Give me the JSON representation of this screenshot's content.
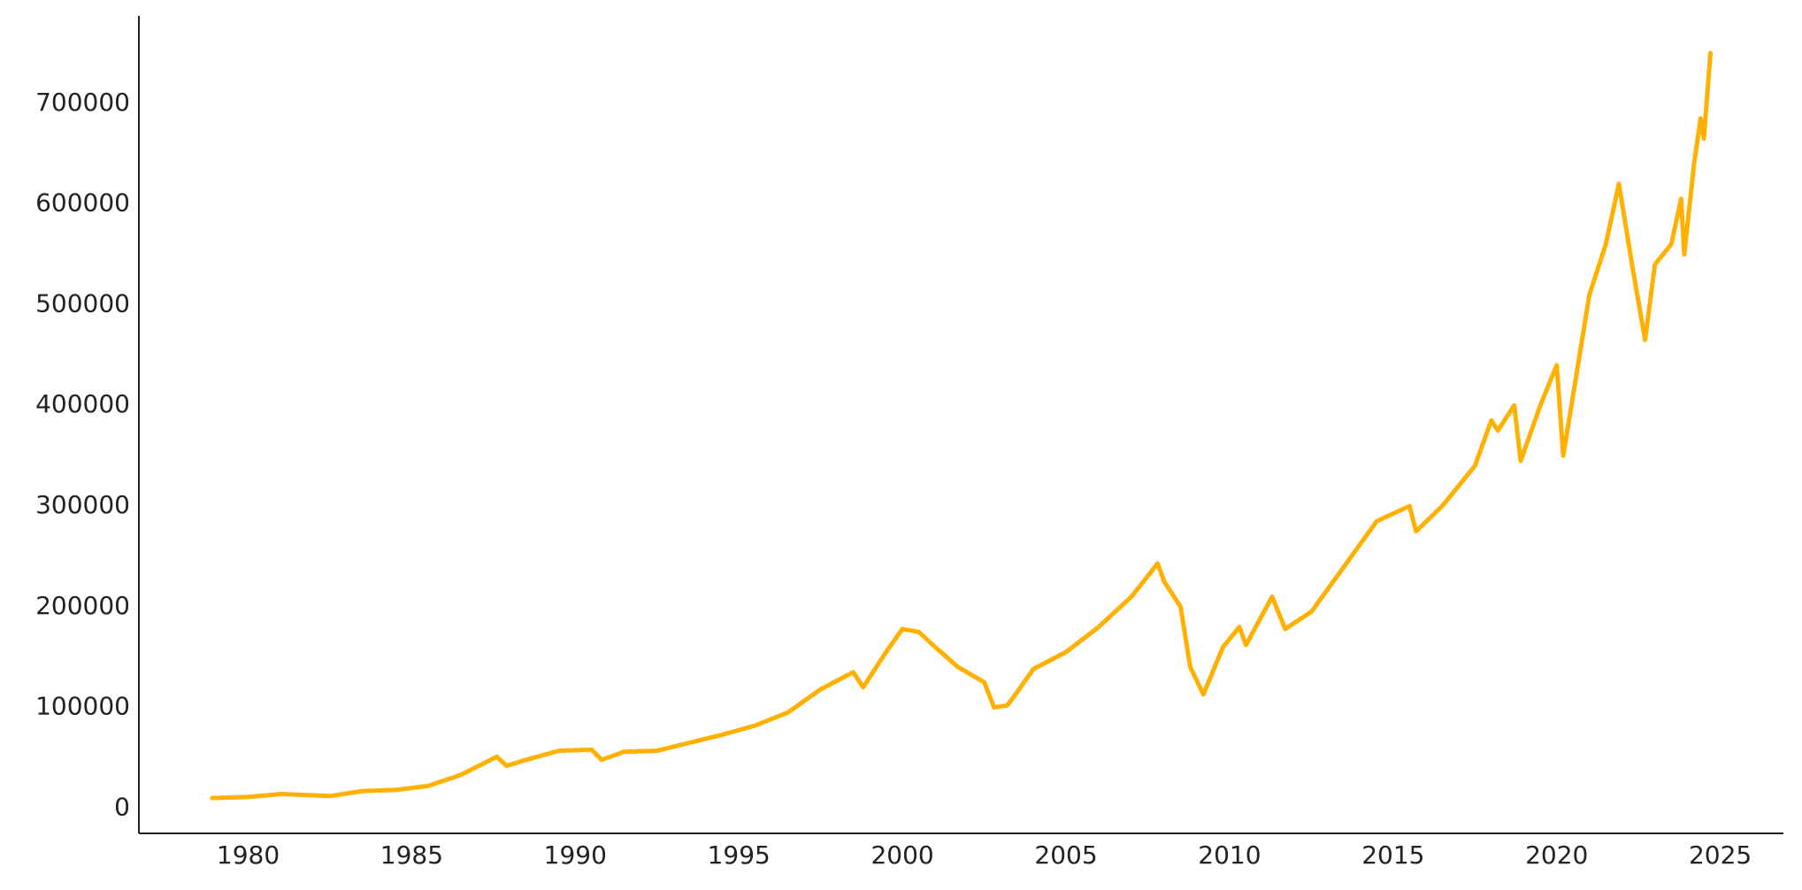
{
  "chart_data": {
    "type": "line",
    "color": "#ffb000",
    "grid": false,
    "x": [
      1978.9,
      1980.0,
      1981.0,
      1982.5,
      1983.5,
      1984.5,
      1985.5,
      1986.5,
      1987.6,
      1987.9,
      1988.5,
      1989.5,
      1990.5,
      1990.8,
      1991.5,
      1992.5,
      1993.5,
      1994.5,
      1995.5,
      1996.5,
      1997.5,
      1998.5,
      1998.8,
      1999.5,
      2000.0,
      2000.5,
      2001.0,
      2001.7,
      2002.5,
      2002.8,
      2003.2,
      2003.5,
      2004.0,
      2005.0,
      2006.0,
      2007.0,
      2007.8,
      2008.0,
      2008.5,
      2008.8,
      2009.2,
      2009.8,
      2010.3,
      2010.5,
      2011.3,
      2011.7,
      2012.5,
      2013.5,
      2014.5,
      2015.5,
      2015.7,
      2016.5,
      2017.5,
      2018.0,
      2018.2,
      2018.7,
      2018.9,
      2019.5,
      2020.0,
      2020.2,
      2020.5,
      2021.0,
      2021.5,
      2021.9,
      2022.3,
      2022.7,
      2023.0,
      2023.5,
      2023.8,
      2023.9,
      2024.2,
      2024.4,
      2024.5,
      2024.7
    ],
    "values": [
      10000,
      11000,
      14000,
      12000,
      17000,
      18000,
      22000,
      33000,
      51000,
      42000,
      48000,
      57000,
      58000,
      48000,
      56000,
      57000,
      65000,
      73000,
      82000,
      95000,
      118000,
      135000,
      120000,
      155000,
      178000,
      175000,
      160000,
      140000,
      125000,
      100000,
      102000,
      115000,
      138000,
      155000,
      180000,
      210000,
      243000,
      225000,
      200000,
      140000,
      113000,
      160000,
      180000,
      162000,
      210000,
      178000,
      195000,
      240000,
      285000,
      300000,
      275000,
      300000,
      340000,
      385000,
      375000,
      400000,
      345000,
      400000,
      440000,
      350000,
      410000,
      510000,
      560000,
      620000,
      540000,
      465000,
      540000,
      560000,
      605000,
      550000,
      640000,
      685000,
      665000,
      750000
    ],
    "xlim": [
      1976.66,
      2026.93
    ],
    "ylim": [
      -25100,
      786800
    ],
    "xticks": [
      1980,
      1985,
      1990,
      1995,
      2000,
      2005,
      2010,
      2015,
      2020,
      2025
    ],
    "yticks": [
      0,
      100000,
      200000,
      300000,
      400000,
      500000,
      600000,
      700000
    ]
  }
}
